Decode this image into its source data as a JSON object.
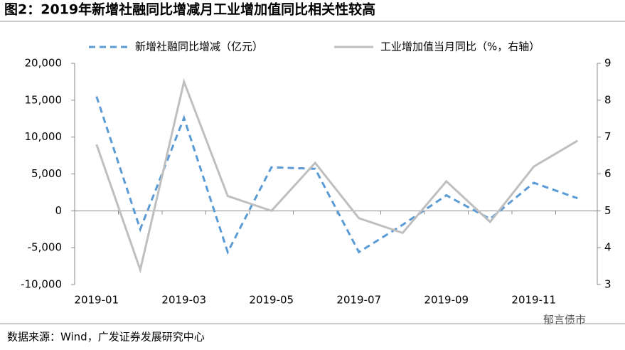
{
  "chart_data": {
    "type": "line",
    "title": "图2：2019年新增社融同比增减月工业增加值同比相关性较高",
    "source": "数据来源：Wind，广发证券发展研究中心",
    "watermark": "郁言债市",
    "categories": [
      "2019-01",
      null,
      "2019-03",
      null,
      "2019-05",
      null,
      "2019-07",
      null,
      "2019-09",
      null,
      "2019-11",
      null
    ],
    "series": [
      {
        "name": "新增社融同比增减（亿元）",
        "color": "#5b9bd5",
        "dash": true,
        "values": [
          15500,
          -2500,
          12600,
          -5600,
          5900,
          5700,
          -5600,
          -1900,
          2100,
          -1100,
          3800,
          1700
        ]
      },
      {
        "name": "工业增加值当月同比（%，右轴）",
        "color": "#bfbfbf",
        "axis": "y2",
        "dash": false,
        "values": [
          6.8,
          3.4,
          8.5,
          5.4,
          5.0,
          6.3,
          4.8,
          4.4,
          5.8,
          4.7,
          6.2,
          6.9
        ]
      }
    ],
    "ylim": [
      -10000,
      20000
    ],
    "yticks": [
      {
        "value": -10000,
        "label": "-10,000"
      },
      {
        "value": -5000,
        "label": "-5,000"
      },
      0,
      {
        "value": 5000,
        "label": "5,000"
      },
      {
        "value": 10000,
        "label": "10,000"
      },
      {
        "value": 15000,
        "label": "15,000"
      },
      {
        "value": 20000,
        "label": "20,000"
      }
    ],
    "y2lim": [
      3,
      9
    ],
    "y2ticks": [
      3,
      4,
      5,
      6,
      7,
      8,
      9
    ]
  }
}
